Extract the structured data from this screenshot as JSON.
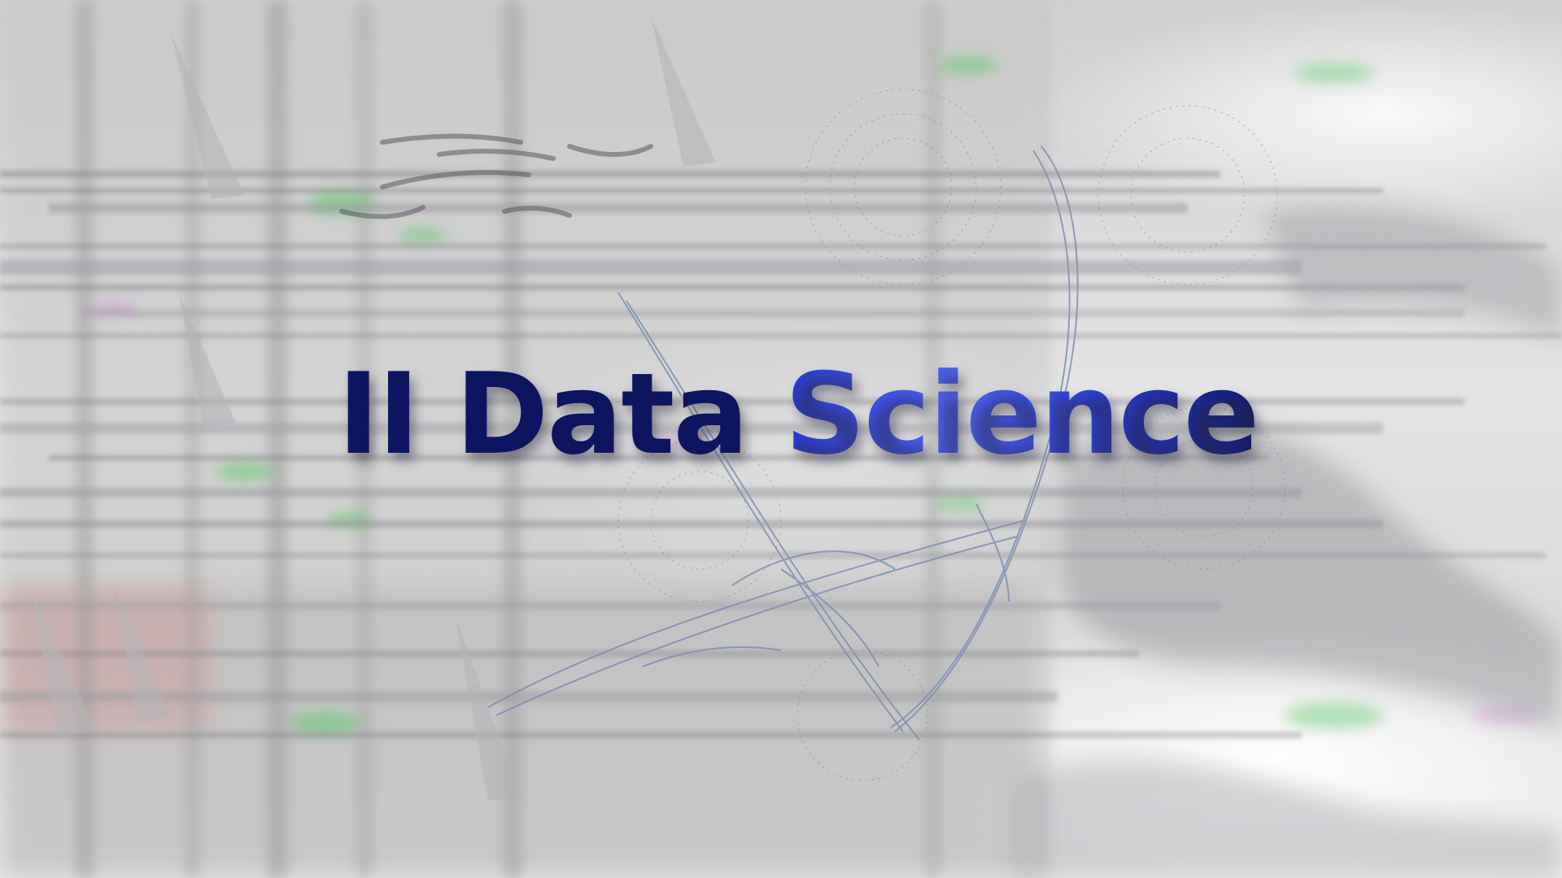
{
  "title": {
    "prefix": "II Data ",
    "highlight": "Science"
  },
  "colors": {
    "title_dark": "#0e1560",
    "title_accent": "#4f62f0",
    "background_gray": "#d9d9d9",
    "streak_gray": "#8a8a90",
    "glow_green": "#5fc86a",
    "glow_magenta": "#d08ad8",
    "glow_red": "#d87a7a",
    "wire_blue": "#7f8fb0"
  }
}
